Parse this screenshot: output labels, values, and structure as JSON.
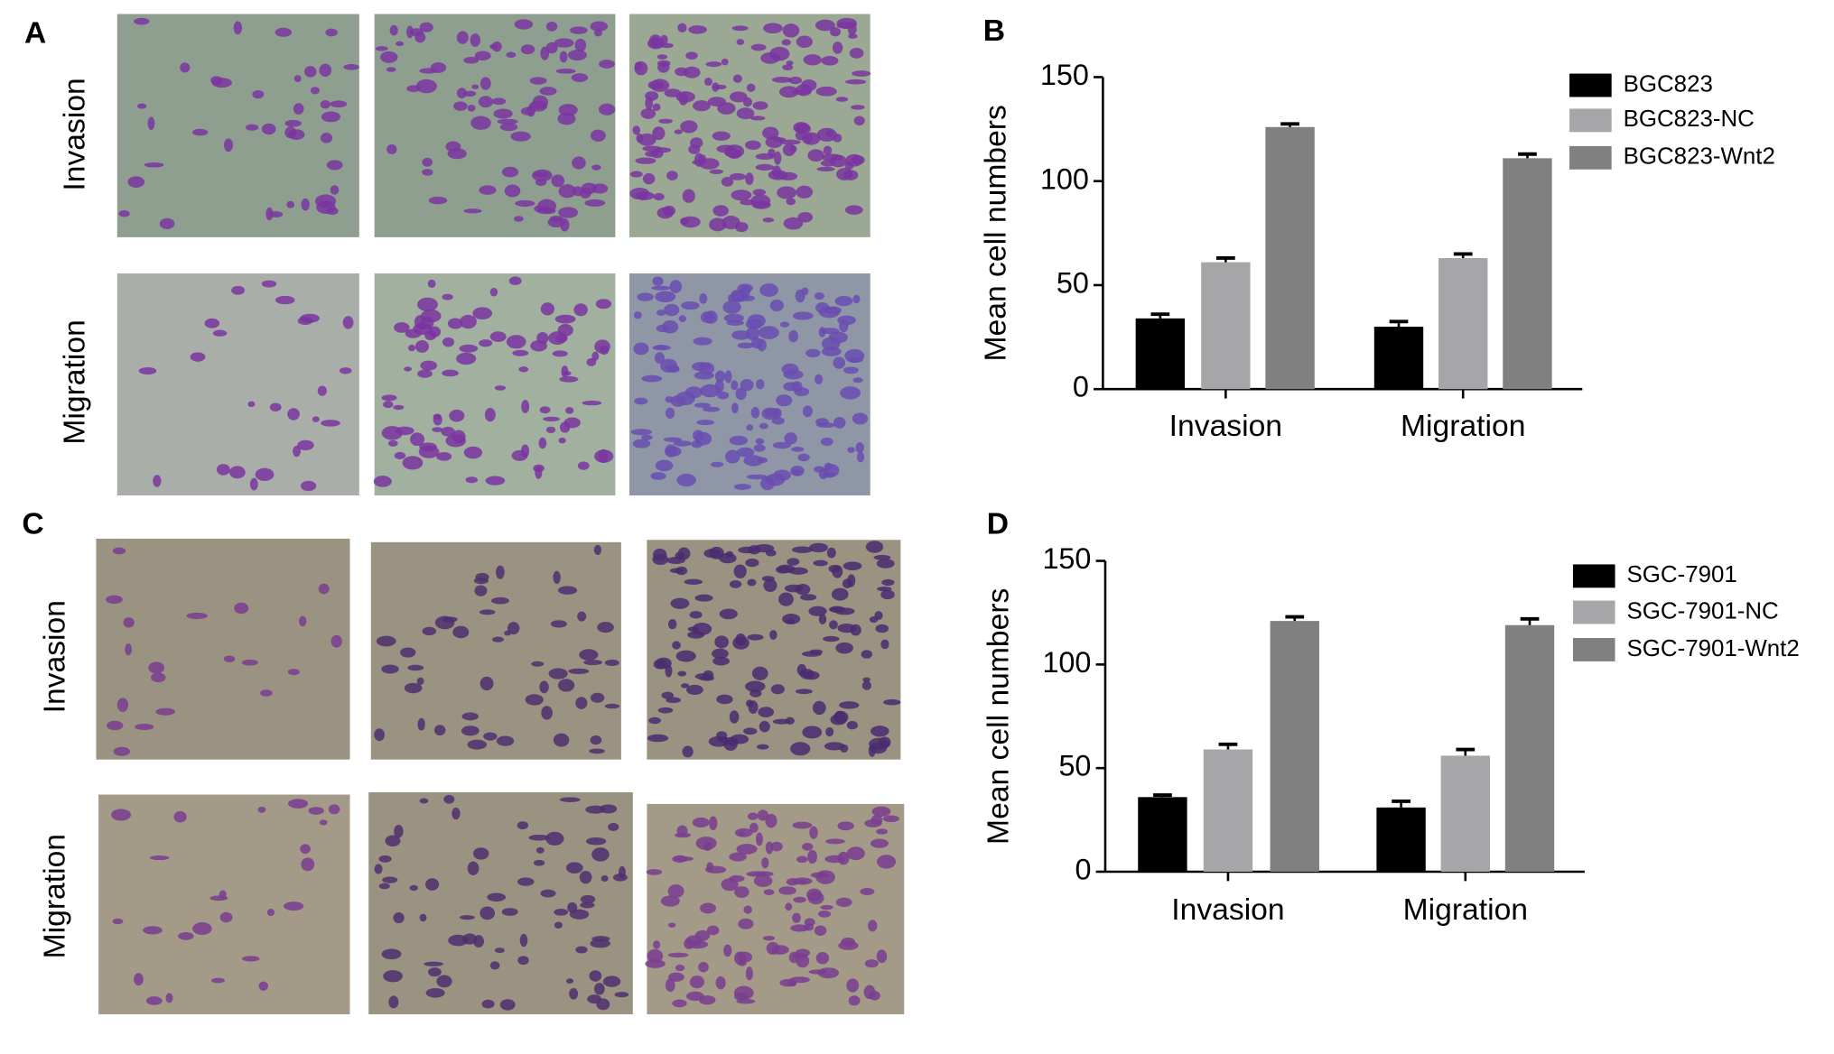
{
  "figure": {
    "panel_labels": [
      "A",
      "B",
      "C",
      "D"
    ],
    "image_rows": [
      [
        "Invasion",
        "Migration"
      ],
      [
        "Invasion",
        "Migration"
      ]
    ]
  },
  "chart_data": [
    {
      "type": "bar",
      "y_label": "Mean cell numbers",
      "categories": [
        "Invasion",
        "Migration"
      ],
      "ylim": [
        0,
        150
      ],
      "yticks": [
        0,
        50,
        100,
        150
      ],
      "series": [
        {
          "name": "BGC823",
          "color": "#000000",
          "values": [
            34,
            30
          ],
          "errors": [
            2,
            2.5
          ]
        },
        {
          "name": "BGC823-NC",
          "color": "#a6a6a8",
          "values": [
            61,
            63
          ],
          "errors": [
            2,
            2
          ]
        },
        {
          "name": "BGC823-Wnt2",
          "color": "#808080",
          "values": [
            126,
            111
          ],
          "errors": [
            1.5,
            2
          ]
        }
      ]
    },
    {
      "type": "bar",
      "y_label": "Mean cell numbers",
      "categories": [
        "Invasion",
        "Migration"
      ],
      "ylim": [
        0,
        150
      ],
      "yticks": [
        0,
        50,
        100,
        150
      ],
      "series": [
        {
          "name": "SGC-7901",
          "color": "#000000",
          "values": [
            36,
            31
          ],
          "errors": [
            1,
            3
          ]
        },
        {
          "name": "SGC-7901-NC",
          "color": "#a6a6a8",
          "values": [
            59,
            56
          ],
          "errors": [
            2.5,
            3
          ]
        },
        {
          "name": "SGC-7901-Wnt2",
          "color": "#808080",
          "values": [
            121,
            119
          ],
          "errors": [
            2,
            3
          ]
        }
      ]
    }
  ]
}
